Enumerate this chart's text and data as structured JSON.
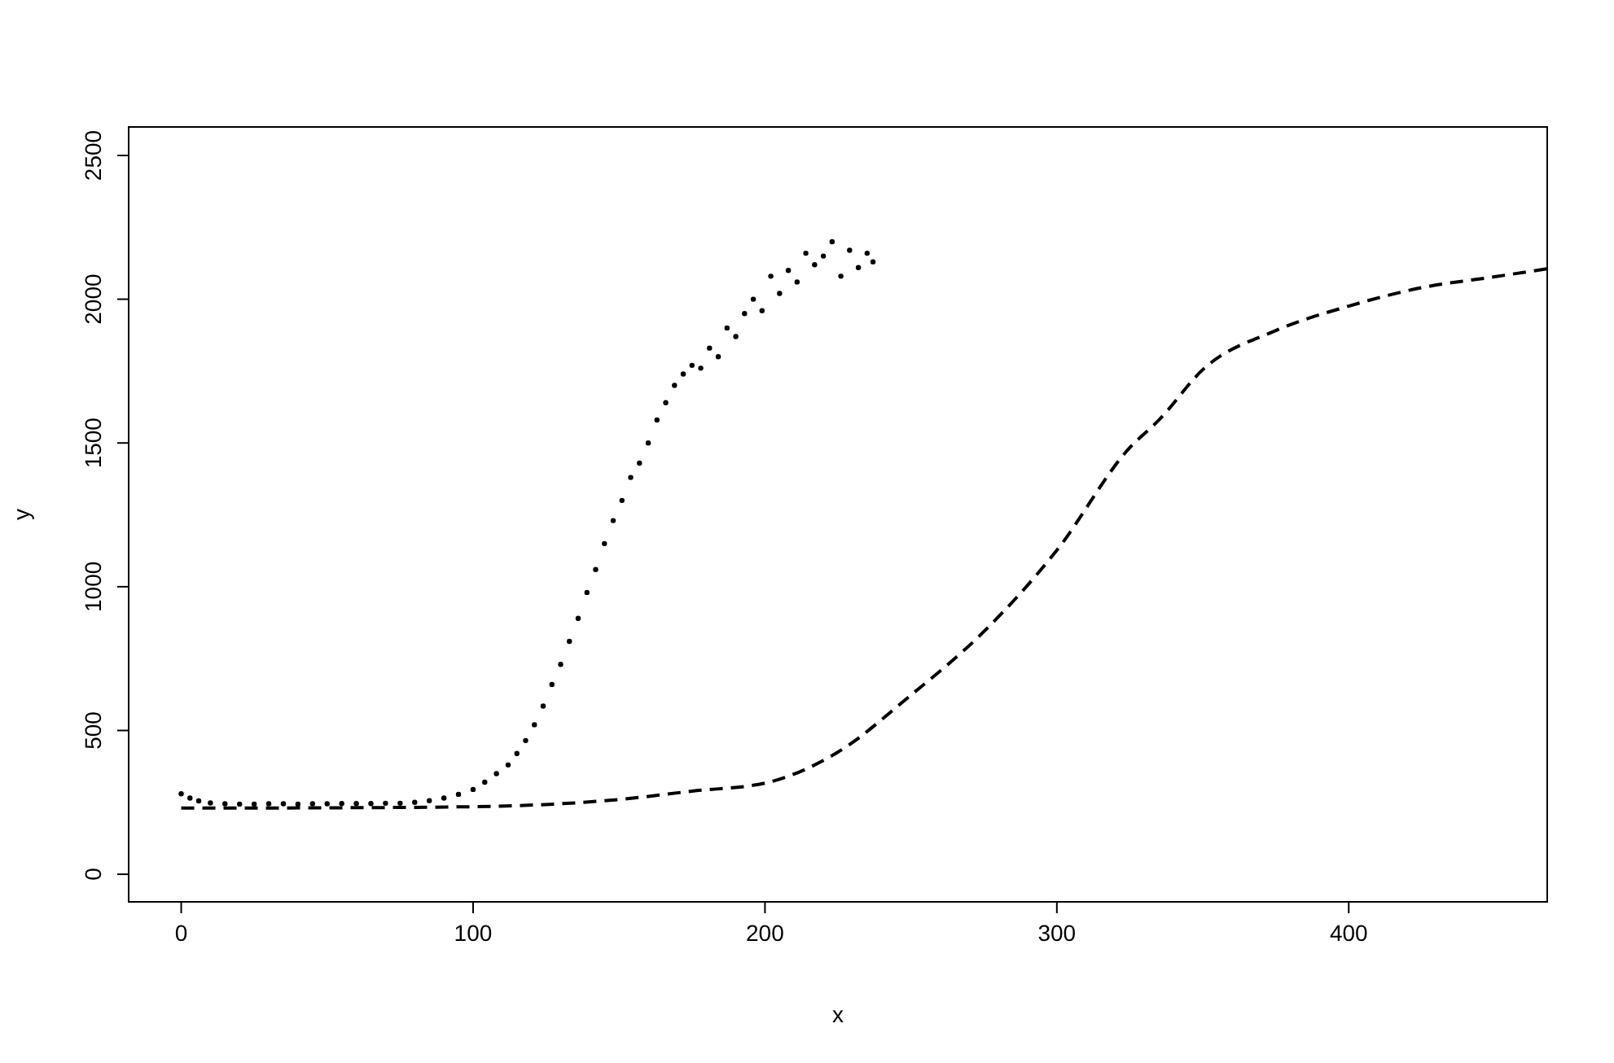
{
  "chart_data": {
    "type": "scatter",
    "xlabel": "x",
    "ylabel": "y",
    "xlim": [
      -18,
      468
    ],
    "ylim": [
      -96,
      2599
    ],
    "xticks": [
      0,
      100,
      200,
      300,
      400
    ],
    "yticks": [
      0,
      500,
      1000,
      1500,
      2000,
      2500
    ],
    "grid": false,
    "series": [
      {
        "color": "#000000",
        "marker": "circle",
        "x": [
          0,
          3,
          6,
          10,
          15,
          20,
          25,
          30,
          35,
          40,
          45,
          50,
          55,
          60,
          65,
          70,
          75,
          80,
          85,
          90,
          95,
          100,
          104,
          108,
          112,
          115,
          118,
          121,
          124,
          127,
          130,
          133,
          136,
          139,
          142,
          145,
          148,
          151,
          154,
          157,
          160,
          163,
          166,
          169,
          172,
          175,
          178,
          181,
          184,
          187,
          190,
          193,
          196,
          199,
          202,
          205,
          208,
          211,
          214,
          217,
          220,
          223,
          226,
          229,
          232,
          235,
          237
        ],
        "values": [
          280,
          265,
          255,
          248,
          245,
          244,
          244,
          245,
          245,
          244,
          245,
          245,
          246,
          246,
          246,
          247,
          247,
          250,
          256,
          265,
          278,
          295,
          320,
          350,
          380,
          420,
          465,
          520,
          585,
          660,
          730,
          810,
          890,
          980,
          1060,
          1150,
          1230,
          1300,
          1380,
          1430,
          1500,
          1580,
          1640,
          1700,
          1740,
          1770,
          1760,
          1830,
          1800,
          1900,
          1870,
          1950,
          2000,
          1960,
          2080,
          2020,
          2100,
          2060,
          2160,
          2120,
          2150,
          2200,
          2080,
          2170,
          2110,
          2160,
          2130
        ]
      },
      {
        "type": "line",
        "color": "#000000",
        "marker": "none",
        "line_style": "dashed",
        "x": [
          0,
          50,
          100,
          150,
          175,
          200,
          225,
          250,
          275,
          300,
          325,
          335,
          350,
          375,
          400,
          425,
          450,
          468
        ],
        "values": [
          230,
          231,
          235,
          260,
          289,
          317,
          425,
          623,
          844,
          1127,
          1484,
          1580,
          1755,
          1891,
          1976,
          2040,
          2078,
          2106
        ]
      }
    ]
  }
}
